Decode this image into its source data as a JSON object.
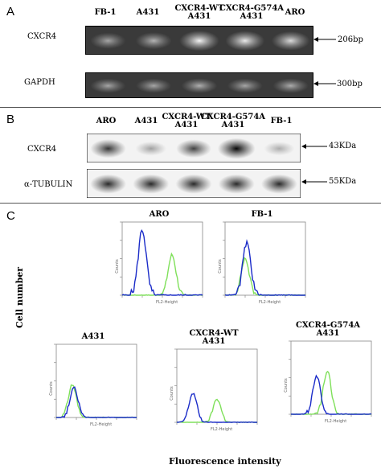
{
  "panel_a": {
    "letter": "A",
    "lanes": [
      "FB-1",
      "A431",
      "CXCR4-WT\nA431",
      "CXCR4-G574A\nA431",
      "ARO"
    ],
    "rows": [
      {
        "name": "CXCR4",
        "size": "206bp",
        "intensity": [
          0.55,
          0.62,
          0.95,
          0.9,
          0.82
        ]
      },
      {
        "name": "GAPDH",
        "size": "300bp",
        "intensity": [
          0.55,
          0.55,
          0.6,
          0.55,
          0.58
        ]
      }
    ]
  },
  "panel_b": {
    "letter": "B",
    "lanes": [
      "ARO",
      "A431",
      "CXCR4-WT\nA431",
      "CXCR4-G574A\nA431",
      "FB-1"
    ],
    "rows": [
      {
        "name": "CXCR4",
        "size": "43KDa",
        "intensity": [
          0.8,
          0.35,
          0.75,
          1.0,
          0.3
        ]
      },
      {
        "name": "α-TUBULIN",
        "size": "55KDa",
        "intensity": [
          0.85,
          0.85,
          0.85,
          0.85,
          0.85
        ]
      }
    ]
  },
  "panel_c": {
    "letter": "C",
    "y_title": "Cell number",
    "x_title": "Fluorescence intensity",
    "plot_ylabel": "Counts",
    "plot_xlabel": "FL2-Height",
    "plots": [
      {
        "title": "ARO",
        "blue_peak": 0.25,
        "blue_h": 0.9,
        "green_peak": 0.62,
        "green_h": 0.55
      },
      {
        "title": "FB-1",
        "blue_peak": 0.27,
        "blue_h": 0.72,
        "green_peak": 0.25,
        "green_h": 0.5
      },
      {
        "title": "A431",
        "blue_peak": 0.22,
        "blue_h": 0.42,
        "green_peak": 0.2,
        "green_h": 0.45
      },
      {
        "title": "CXCR4-WT\nA431",
        "blue_peak": 0.2,
        "blue_h": 0.4,
        "green_peak": 0.5,
        "green_h": 0.32
      },
      {
        "title": "CXCR4-G574A\nA431",
        "blue_peak": 0.32,
        "blue_h": 0.5,
        "green_peak": 0.45,
        "green_h": 0.58
      }
    ]
  },
  "colors": {
    "blue": "#1a2bc8",
    "green": "#7fe05a"
  }
}
